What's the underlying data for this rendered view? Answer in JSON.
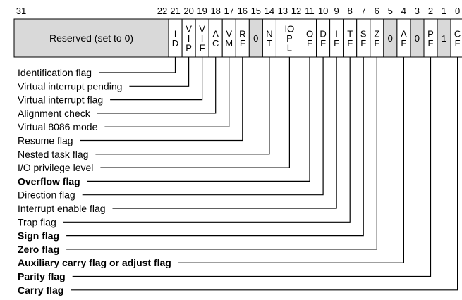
{
  "register": {
    "bit_numbers": [
      {
        "text": "31",
        "bit": 31
      },
      {
        "text": "22",
        "bit": 22
      },
      {
        "text": "21",
        "bit": 21
      },
      {
        "text": "20",
        "bit": 20
      },
      {
        "text": "19",
        "bit": 19
      },
      {
        "text": "18",
        "bit": 18
      },
      {
        "text": "17",
        "bit": 17
      },
      {
        "text": "16",
        "bit": 16
      },
      {
        "text": "15",
        "bit": 15
      },
      {
        "text": "14",
        "bit": 14
      },
      {
        "text": "13",
        "bit": 13
      },
      {
        "text": "12",
        "bit": 12
      },
      {
        "text": "11",
        "bit": 11
      },
      {
        "text": "10",
        "bit": 10
      },
      {
        "text": "9",
        "bit": 9
      },
      {
        "text": "8",
        "bit": 8
      },
      {
        "text": "7",
        "bit": 7
      },
      {
        "text": "6",
        "bit": 6
      },
      {
        "text": "5",
        "bit": 5
      },
      {
        "text": "4",
        "bit": 4
      },
      {
        "text": "3",
        "bit": 3
      },
      {
        "text": "2",
        "bit": 2
      },
      {
        "text": "1",
        "bit": 1
      },
      {
        "text": "0",
        "bit": 0
      }
    ],
    "reserved_label": "Reserved (set to 0)",
    "cells": [
      {
        "bit": 21,
        "lines": [
          "I",
          "D"
        ],
        "shade": "white"
      },
      {
        "bit": 20,
        "lines": [
          "V",
          "I",
          "P"
        ],
        "shade": "white"
      },
      {
        "bit": 19,
        "lines": [
          "V",
          "I",
          "F"
        ],
        "shade": "white"
      },
      {
        "bit": 18,
        "lines": [
          "A",
          "C"
        ],
        "shade": "white"
      },
      {
        "bit": 17,
        "lines": [
          "V",
          "M"
        ],
        "shade": "white"
      },
      {
        "bit": 16,
        "lines": [
          "R",
          "F"
        ],
        "shade": "white"
      },
      {
        "bit": 15,
        "lines": [
          "0"
        ],
        "shade": "gray"
      },
      {
        "bit": 14,
        "lines": [
          "N",
          "T"
        ],
        "shade": "white"
      },
      {
        "bit": 12,
        "lines": [
          "IO",
          "P",
          "L"
        ],
        "shade": "white",
        "span": 2
      },
      {
        "bit": 11,
        "lines": [
          "O",
          "F"
        ],
        "shade": "white"
      },
      {
        "bit": 10,
        "lines": [
          "D",
          "F"
        ],
        "shade": "white"
      },
      {
        "bit": 9,
        "lines": [
          "I",
          "F"
        ],
        "shade": "white"
      },
      {
        "bit": 8,
        "lines": [
          "T",
          "F"
        ],
        "shade": "white"
      },
      {
        "bit": 7,
        "lines": [
          "S",
          "F"
        ],
        "shade": "white"
      },
      {
        "bit": 6,
        "lines": [
          "Z",
          "F"
        ],
        "shade": "white"
      },
      {
        "bit": 5,
        "lines": [
          "0"
        ],
        "shade": "gray"
      },
      {
        "bit": 4,
        "lines": [
          "A",
          "F"
        ],
        "shade": "white"
      },
      {
        "bit": 3,
        "lines": [
          "0"
        ],
        "shade": "gray"
      },
      {
        "bit": 2,
        "lines": [
          "P",
          "F"
        ],
        "shade": "white"
      },
      {
        "bit": 1,
        "lines": [
          "1"
        ],
        "shade": "gray"
      },
      {
        "bit": 0,
        "lines": [
          "C",
          "F"
        ],
        "shade": "white"
      }
    ]
  },
  "flag_labels": [
    {
      "text": "Identification flag",
      "bit": 21,
      "bold": false
    },
    {
      "text": "Virtual interrupt pending",
      "bit": 20,
      "bold": false
    },
    {
      "text": "Virtual interrupt flag",
      "bit": 19,
      "bold": false
    },
    {
      "text": "Alignment check",
      "bit": 18,
      "bold": false
    },
    {
      "text": "Virtual 8086 mode",
      "bit": 17,
      "bold": false
    },
    {
      "text": "Resume flag",
      "bit": 16,
      "bold": false
    },
    {
      "text": "Nested task flag",
      "bit": 14,
      "bold": false
    },
    {
      "text": "I/O privilege level",
      "bit": 12,
      "bold": false
    },
    {
      "text": "Overflow flag",
      "bit": 11,
      "bold": true
    },
    {
      "text": "Direction flag",
      "bit": 10,
      "bold": false
    },
    {
      "text": "Interrupt enable flag",
      "bit": 9,
      "bold": false
    },
    {
      "text": "Trap flag",
      "bit": 8,
      "bold": false
    },
    {
      "text": "Sign flag",
      "bit": 7,
      "bold": true
    },
    {
      "text": "Zero flag",
      "bit": 6,
      "bold": true
    },
    {
      "text": "Auxiliary carry flag or adjust flag",
      "bit": 4,
      "bold": true
    },
    {
      "text": "Parity flag",
      "bit": 2,
      "bold": true
    },
    {
      "text": "Carry flag",
      "bit": 0,
      "bold": true
    }
  ],
  "colors": {
    "reserved_fill": "#d9d9d9",
    "line": "#000000",
    "cell_fill": "#ffffff"
  }
}
